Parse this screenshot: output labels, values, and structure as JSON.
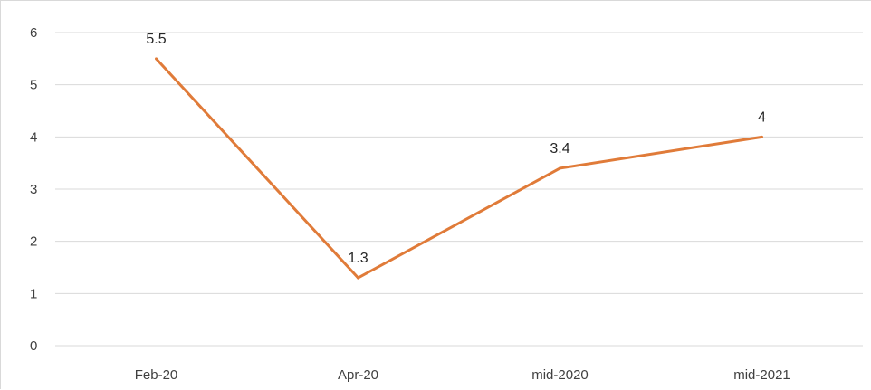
{
  "chart_data": {
    "type": "line",
    "title": "",
    "xlabel": "",
    "ylabel": "",
    "categories": [
      "Feb-20",
      "Apr-20",
      "mid-2020",
      "mid-2021"
    ],
    "series": [
      {
        "values": [
          5.5,
          1.3,
          3.4,
          4
        ],
        "data_labels": [
          "5.5",
          "1.3",
          "3.4",
          "4"
        ],
        "color": "#E07B39"
      }
    ],
    "ylim": [
      0,
      6
    ],
    "yticks": [
      0,
      1,
      2,
      3,
      4,
      5,
      6
    ],
    "ytick_labels": [
      "0",
      "1",
      "2",
      "3",
      "4",
      "5",
      "6"
    ],
    "grid": true,
    "legend": "none",
    "colors": {
      "grid": "#D9D9D9",
      "text": "#404040"
    }
  }
}
